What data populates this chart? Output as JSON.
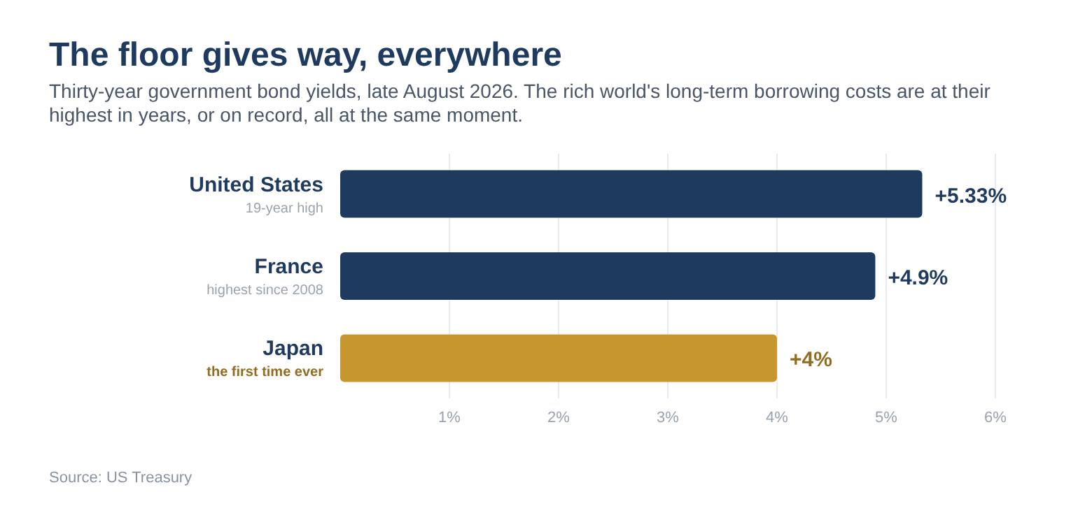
{
  "chart_data": {
    "type": "bar",
    "orientation": "horizontal",
    "title": "The floor gives way, everywhere",
    "subtitle": "Thirty-year government bond yields, late August 2026. The rich world's long-term borrowing costs are at their highest in years, or on record, all at the same moment.",
    "categories": [
      "United States",
      "France",
      "Japan"
    ],
    "values": [
      5.33,
      4.9,
      4
    ],
    "colors": [
      "#1e3a5f",
      "#1e3a5f",
      "#c8962e"
    ],
    "value_labels": [
      "+5.33%",
      "+4.9%",
      "+4%"
    ],
    "xlim": [
      0,
      6
    ],
    "xticks": [
      {
        "value": 1,
        "label": "1%"
      },
      {
        "value": 2,
        "label": "2%"
      },
      {
        "value": 3,
        "label": "3%"
      },
      {
        "value": 4,
        "label": "4%"
      },
      {
        "value": 5,
        "label": "5%"
      },
      {
        "value": 6,
        "label": "6%"
      }
    ],
    "grid": "x",
    "annotations": [
      "19-year high",
      "highest since 2008",
      "the first time ever",
      "Source: US Treasury"
    ]
  }
}
